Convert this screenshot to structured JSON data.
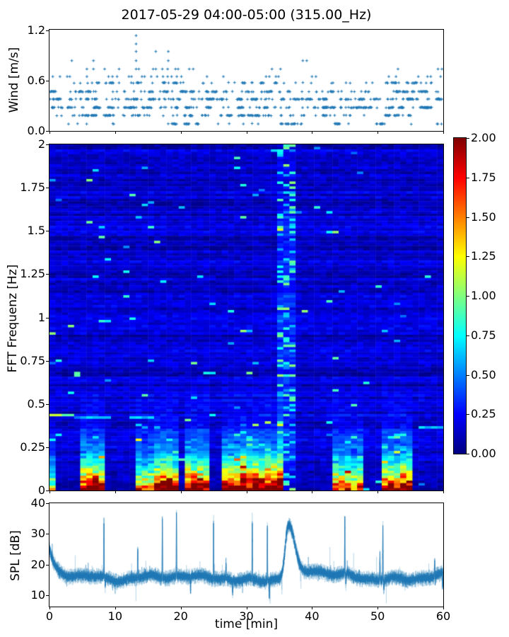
{
  "title": "2017-05-29 04:00-05:00 (315.00_Hz)",
  "xlabel": "time [min]",
  "x_axis": {
    "lim": [
      0,
      60
    ],
    "ticks": [
      0,
      10,
      20,
      30,
      40,
      50,
      60
    ],
    "tick_labels": [
      "0",
      "10",
      "20",
      "30",
      "40",
      "50",
      "60"
    ]
  },
  "colors": {
    "series_blue": "#1f77b4",
    "spine": "#000000",
    "background": "#ffffff"
  },
  "colorbar": {
    "lim": [
      0,
      2
    ],
    "ticks": [
      0,
      0.25,
      0.5,
      0.75,
      1,
      1.25,
      1.5,
      1.75,
      2
    ],
    "tick_labels": [
      "0.00",
      "0.25",
      "0.50",
      "0.75",
      "1.00",
      "1.25",
      "1.50",
      "1.75",
      "2.00"
    ],
    "colormap": "jet",
    "stops": [
      "#000080",
      "#0000ff",
      "#00ffff",
      "#80ff80",
      "#ffff00",
      "#ff0000",
      "#800000"
    ]
  },
  "chart_data": [
    {
      "type": "scatter",
      "panel": "wind",
      "ylabel": "Wind [m/s]",
      "xlim": [
        0,
        60
      ],
      "ylim": [
        0,
        1.21
      ],
      "yticks": [
        0,
        0.6,
        1.2
      ],
      "ytick_labels": [
        "0.0",
        "0.6",
        "1.2"
      ],
      "marker": "+",
      "dense_levels": [
        {
          "y": 0.085,
          "n": 75,
          "seed": 11
        },
        {
          "y": 0.185,
          "n": 150,
          "seed": 12
        },
        {
          "y": 0.28,
          "n": 235,
          "seed": 13
        },
        {
          "y": 0.38,
          "n": 240,
          "seed": 14
        },
        {
          "y": 0.47,
          "n": 165,
          "seed": 15
        },
        {
          "y": 0.575,
          "n": 95,
          "seed": 16
        }
      ],
      "sparse_levels": [
        {
          "y": 0.65,
          "x": [
            0.5,
            1.6,
            2.7,
            3.1,
            5.7,
            9.0,
            9.6,
            10.3,
            12.1,
            12.5,
            14.1,
            14.5,
            15.5,
            16.4,
            17.3,
            18.0,
            18.6,
            19.4,
            20.1,
            24.0,
            26.5,
            33.0,
            33.5,
            34.5,
            34.9,
            40.0,
            40.6,
            51.7,
            52.8,
            56.2,
            57.6,
            58.1,
            59.6
          ]
        },
        {
          "y": 0.74,
          "x": [
            5.7,
            6.7,
            8.4,
            10.6,
            13.2,
            13.6,
            15.8,
            16.2,
            17.2,
            18.0,
            19.2,
            19.6,
            21.3,
            21.9,
            33.9,
            35.2,
            53.1,
            59.2,
            59.8
          ]
        },
        {
          "y": 0.84,
          "x": [
            3.4,
            6.7,
            13.2,
            18.1,
            38.6,
            39.2
          ]
        },
        {
          "y": 0.95,
          "x": [
            13.2,
            16.2,
            18.1
          ]
        },
        {
          "y": 1.04,
          "x": [
            13.2
          ]
        },
        {
          "y": 1.14,
          "x": [
            13.2
          ]
        }
      ]
    },
    {
      "type": "heatmap",
      "panel": "spectrogram",
      "ylabel": "FFT Frequenz [Hz]",
      "xlim": [
        0,
        60
      ],
      "ylim": [
        0,
        2
      ],
      "yticks": [
        0,
        0.25,
        0.5,
        0.75,
        1,
        1.25,
        1.5,
        1.75,
        2
      ],
      "ytick_labels": [
        "0",
        "0.25",
        "0.5",
        "0.75",
        "1",
        "1.25",
        "1.5",
        "1.75",
        "2"
      ],
      "clim": [
        0,
        2
      ],
      "background_level": 0.135,
      "grid_cols": 64,
      "grid_rows": 140,
      "seed": 7,
      "freq_decay": 0.128,
      "bursts": [
        {
          "t0": 0.1,
          "t1": 0.9,
          "amp": 1.3
        },
        {
          "t0": 4.3,
          "t1": 8.3,
          "amp": 2.3
        },
        {
          "t0": 13.4,
          "t1": 16.3,
          "amp": 1.7
        },
        {
          "t0": 16.3,
          "t1": 19.3,
          "amp": 2.5
        },
        {
          "t0": 20.7,
          "t1": 24.5,
          "amp": 2.2
        },
        {
          "t0": 26.4,
          "t1": 33.0,
          "amp": 2.5
        },
        {
          "t0": 33.2,
          "t1": 35.2,
          "amp": 2.7
        },
        {
          "t0": 43.4,
          "t1": 48.1,
          "amp": 1.8
        },
        {
          "t0": 50.3,
          "t1": 54.9,
          "amp": 2.3
        }
      ],
      "tonal_lines": [
        {
          "f": 0.43,
          "t0": 0,
          "t1": 4.2,
          "value": 1.05
        },
        {
          "f": 0.415,
          "t0": 4.2,
          "t1": 9.2,
          "value": 0.55
        },
        {
          "f": 0.425,
          "t0": 12.6,
          "t1": 16.2,
          "value": 0.6
        },
        {
          "f": 0.365,
          "t0": 56.6,
          "t1": 60,
          "value": 0.7
        }
      ],
      "vertical_stripe": {
        "t0": 34.6,
        "t1": 37.4,
        "boost": 0.16,
        "sparkle": 0.22
      }
    },
    {
      "type": "line",
      "panel": "spl",
      "ylabel": "SPL [dB]",
      "xlim": [
        0,
        60
      ],
      "ylim": [
        6.3,
        40
      ],
      "yticks": [
        10,
        20,
        30,
        40
      ],
      "ytick_labels": [
        "10",
        "20",
        "30",
        "40"
      ],
      "baseline_db": 15.9,
      "noise_amp": 1.25,
      "seed": 21,
      "start_transient": {
        "amp": 8.2,
        "tau": 0.75
      },
      "broad_bump": {
        "center": 36.35,
        "sigma_left": 0.45,
        "sigma_right": 0.78,
        "amp": 15.3,
        "shoulder_center": 37.3,
        "shoulder_sigma": 0.7,
        "shoulder_amp": 3.5,
        "minor_center": 40.2,
        "minor_sigma": 1.3,
        "minor_amp": 1.8
      },
      "spikes": [
        [
          8.3,
          35.2
        ],
        [
          13.45,
          24.8
        ],
        [
          17.2,
          36.2
        ],
        [
          19.35,
          38.4
        ],
        [
          25.0,
          36.0
        ],
        [
          26.9,
          21.5
        ],
        [
          30.9,
          35.0
        ],
        [
          33.2,
          34.4
        ],
        [
          45.0,
          34.3
        ],
        [
          50.35,
          25.0
        ],
        [
          50.8,
          35.8
        ],
        [
          58.7,
          21.5
        ]
      ],
      "dips": [
        [
          8.5,
          13.0
        ],
        [
          21.5,
          11.0
        ],
        [
          27.9,
          11.5
        ],
        [
          33.5,
          10.3
        ],
        [
          45.15,
          12.8
        ],
        [
          50.95,
          12.5
        ],
        [
          59.9,
          11.5
        ]
      ]
    }
  ]
}
